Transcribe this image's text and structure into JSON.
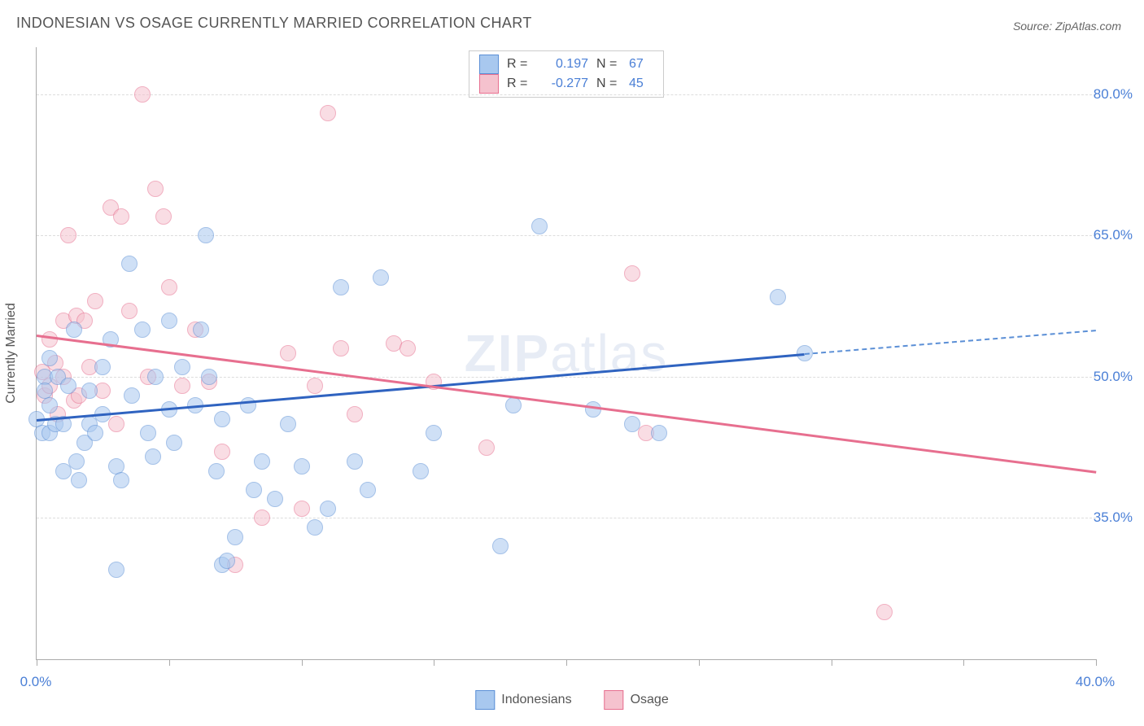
{
  "title": "INDONESIAN VS OSAGE CURRENTLY MARRIED CORRELATION CHART",
  "source": "Source: ZipAtlas.com",
  "watermark": "ZIPatlas",
  "ylabel": "Currently Married",
  "chart": {
    "type": "scatter",
    "background_color": "#ffffff",
    "grid_color": "#dddddd",
    "axis_color": "#aaaaaa",
    "tick_label_color": "#4a7fd6",
    "tick_fontsize": 17,
    "title_color": "#555555",
    "title_fontsize": 18,
    "xlim": [
      0,
      40
    ],
    "ylim": [
      20,
      85
    ],
    "x_ticks": [
      0,
      5,
      10,
      15,
      20,
      25,
      30,
      35,
      40
    ],
    "x_tick_labels": {
      "0": "0.0%",
      "40": "40.0%"
    },
    "y_ticks": [
      35,
      50,
      65,
      80
    ],
    "y_tick_labels": [
      "35.0%",
      "50.0%",
      "65.0%",
      "80.0%"
    ],
    "point_radius": 9,
    "point_opacity": 0.55,
    "point_stroke_width": 1.2,
    "series": [
      {
        "name": "Indonesians",
        "fill": "#a8c8ef",
        "stroke": "#5b8fd6",
        "r_value": "0.197",
        "n_value": "67",
        "trend": {
          "x0": 0,
          "y0": 45.5,
          "x1": 29,
          "y1": 52.5,
          "color": "#2f63c0",
          "width": 2.5
        },
        "trend_ext": {
          "x0": 29,
          "y0": 52.5,
          "x1": 40,
          "y1": 55.0,
          "color": "#5b8fd6",
          "dashed": true
        },
        "points": [
          [
            0.0,
            45.5
          ],
          [
            0.2,
            44.0
          ],
          [
            0.3,
            50.0
          ],
          [
            0.3,
            48.5
          ],
          [
            0.5,
            47.0
          ],
          [
            0.5,
            44.0
          ],
          [
            0.5,
            52.0
          ],
          [
            0.7,
            45.0
          ],
          [
            0.8,
            50.0
          ],
          [
            1.0,
            40.0
          ],
          [
            1.0,
            45.0
          ],
          [
            1.2,
            49.0
          ],
          [
            1.4,
            55.0
          ],
          [
            1.5,
            41.0
          ],
          [
            1.6,
            39.0
          ],
          [
            1.8,
            43.0
          ],
          [
            2.0,
            45.0
          ],
          [
            2.0,
            48.5
          ],
          [
            2.2,
            44.0
          ],
          [
            2.5,
            51.0
          ],
          [
            2.5,
            46.0
          ],
          [
            2.8,
            54.0
          ],
          [
            3.0,
            40.5
          ],
          [
            3.0,
            29.5
          ],
          [
            3.2,
            39.0
          ],
          [
            3.5,
            62.0
          ],
          [
            3.6,
            48.0
          ],
          [
            4.0,
            55.0
          ],
          [
            4.2,
            44.0
          ],
          [
            4.4,
            41.5
          ],
          [
            4.5,
            50.0
          ],
          [
            5.0,
            56.0
          ],
          [
            5.0,
            46.5
          ],
          [
            5.2,
            43.0
          ],
          [
            5.5,
            51.0
          ],
          [
            6.0,
            47.0
          ],
          [
            6.2,
            55.0
          ],
          [
            6.4,
            65.0
          ],
          [
            6.5,
            50.0
          ],
          [
            6.8,
            40.0
          ],
          [
            7.0,
            30.0
          ],
          [
            7.0,
            45.5
          ],
          [
            7.2,
            30.5
          ],
          [
            7.5,
            33.0
          ],
          [
            8.0,
            47.0
          ],
          [
            8.2,
            38.0
          ],
          [
            8.5,
            41.0
          ],
          [
            9.0,
            37.0
          ],
          [
            9.5,
            45.0
          ],
          [
            10.0,
            40.5
          ],
          [
            10.5,
            34.0
          ],
          [
            11.0,
            36.0
          ],
          [
            11.5,
            59.5
          ],
          [
            12.0,
            41.0
          ],
          [
            12.5,
            38.0
          ],
          [
            13.0,
            60.5
          ],
          [
            14.5,
            40.0
          ],
          [
            15.0,
            44.0
          ],
          [
            17.5,
            32.0
          ],
          [
            18.0,
            47.0
          ],
          [
            19.0,
            66.0
          ],
          [
            21.0,
            46.5
          ],
          [
            22.5,
            45.0
          ],
          [
            23.5,
            44.0
          ],
          [
            28.0,
            58.5
          ],
          [
            29.0,
            52.5
          ]
        ]
      },
      {
        "name": "Osage",
        "fill": "#f5c2ce",
        "stroke": "#e76f8f",
        "r_value": "-0.277",
        "n_value": "45",
        "trend": {
          "x0": 0,
          "y0": 54.5,
          "x1": 40,
          "y1": 40.0,
          "color": "#e76f8f",
          "width": 2.5
        },
        "points": [
          [
            0.2,
            50.5
          ],
          [
            0.3,
            48.0
          ],
          [
            0.5,
            54.0
          ],
          [
            0.5,
            49.0
          ],
          [
            0.7,
            51.5
          ],
          [
            0.8,
            46.0
          ],
          [
            1.0,
            56.0
          ],
          [
            1.0,
            50.0
          ],
          [
            1.2,
            65.0
          ],
          [
            1.4,
            47.5
          ],
          [
            1.5,
            56.5
          ],
          [
            1.6,
            48.0
          ],
          [
            1.8,
            56.0
          ],
          [
            2.0,
            51.0
          ],
          [
            2.2,
            58.0
          ],
          [
            2.5,
            48.5
          ],
          [
            2.8,
            68.0
          ],
          [
            3.0,
            45.0
          ],
          [
            3.2,
            67.0
          ],
          [
            3.5,
            57.0
          ],
          [
            4.0,
            80.0
          ],
          [
            4.2,
            50.0
          ],
          [
            4.5,
            70.0
          ],
          [
            4.8,
            67.0
          ],
          [
            5.0,
            59.5
          ],
          [
            5.5,
            49.0
          ],
          [
            6.0,
            55.0
          ],
          [
            6.5,
            49.5
          ],
          [
            7.0,
            42.0
          ],
          [
            7.5,
            30.0
          ],
          [
            8.5,
            35.0
          ],
          [
            9.5,
            52.5
          ],
          [
            10.0,
            36.0
          ],
          [
            10.5,
            49.0
          ],
          [
            11.0,
            78.0
          ],
          [
            11.5,
            53.0
          ],
          [
            12.0,
            46.0
          ],
          [
            13.5,
            53.5
          ],
          [
            14.0,
            53.0
          ],
          [
            15.0,
            49.5
          ],
          [
            17.0,
            42.5
          ],
          [
            22.5,
            61.0
          ],
          [
            23.0,
            44.0
          ],
          [
            32.0,
            25.0
          ]
        ]
      }
    ]
  },
  "legend": {
    "stat_labels": {
      "r": "R =",
      "n": "N ="
    }
  }
}
